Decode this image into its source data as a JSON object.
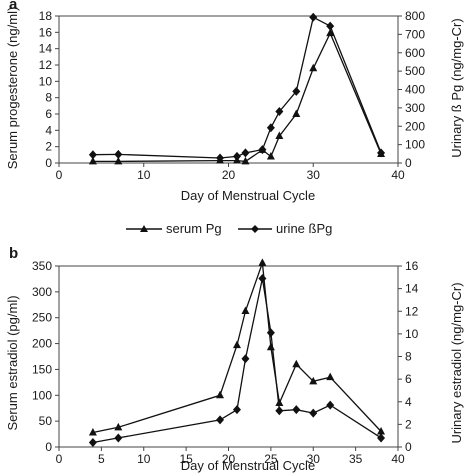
{
  "chart_data": [
    {
      "panel": "a",
      "type": "line",
      "xlabel": "Day of Menstrual Cycle",
      "ylabel_left": "Serum progesterone (ng/ml)",
      "ylabel_right": "Urinary ß Pg (ng/mg-Cr)",
      "xlim": [
        0,
        40
      ],
      "xticks": [
        0,
        10,
        20,
        30,
        40
      ],
      "ylim_left": [
        0,
        18
      ],
      "yticks_left": [
        0,
        2,
        4,
        6,
        8,
        10,
        12,
        14,
        16,
        18
      ],
      "ylim_right": [
        0,
        800
      ],
      "yticks_right": [
        0,
        100,
        200,
        300,
        400,
        500,
        600,
        700,
        800
      ],
      "grid": false,
      "series": [
        {
          "name": "serum Pg",
          "axis": "left",
          "marker": "triangle",
          "x": [
            4,
            7,
            19,
            21,
            22,
            24,
            25,
            26,
            28,
            30,
            32,
            38
          ],
          "y": [
            0.2,
            0.2,
            0.3,
            0.3,
            0.2,
            1.6,
            0.8,
            3.3,
            6.0,
            11.6,
            15.9,
            1.1
          ]
        },
        {
          "name": "urine ßPg",
          "axis": "right",
          "marker": "diamond",
          "x": [
            4,
            7,
            19,
            21,
            22,
            24,
            25,
            26,
            28,
            30,
            32,
            38
          ],
          "y": [
            45,
            47,
            27,
            36,
            55,
            73,
            192,
            280,
            390,
            793,
            745,
            55
          ]
        }
      ],
      "legend": {
        "position": "bottom",
        "entries": [
          "serum Pg",
          "urine ßPg"
        ]
      }
    },
    {
      "panel": "b",
      "type": "line",
      "xlabel": "Day of Menstrual Cycle",
      "ylabel_left": "Serum estradiol (pg/ml)",
      "ylabel_right": "Urinary estradiol (ng/mg-Cr)",
      "xlim": [
        0,
        40
      ],
      "xticks": [
        0,
        5,
        10,
        15,
        20,
        25,
        30,
        35,
        40
      ],
      "ylim_left": [
        0,
        350
      ],
      "yticks_left": [
        0,
        50,
        100,
        150,
        200,
        250,
        300,
        350
      ],
      "ylim_right": [
        0,
        16
      ],
      "yticks_right": [
        0,
        2,
        4,
        6,
        8,
        10,
        12,
        14,
        16
      ],
      "grid": false,
      "series": [
        {
          "axis": "left",
          "marker": "triangle",
          "x": [
            4,
            7,
            19,
            21,
            22,
            24,
            25,
            26,
            28,
            30,
            32,
            38
          ],
          "y": [
            28,
            38,
            100,
            197,
            263,
            356,
            193,
            85,
            160,
            127,
            135,
            30
          ]
        },
        {
          "axis": "right",
          "marker": "diamond",
          "x": [
            4,
            7,
            19,
            21,
            22,
            24,
            25,
            26,
            28,
            30,
            32,
            38
          ],
          "y": [
            0.4,
            0.8,
            2.4,
            3.3,
            7.8,
            14.9,
            10.1,
            3.2,
            3.3,
            3.0,
            3.7,
            0.8
          ]
        }
      ]
    }
  ]
}
